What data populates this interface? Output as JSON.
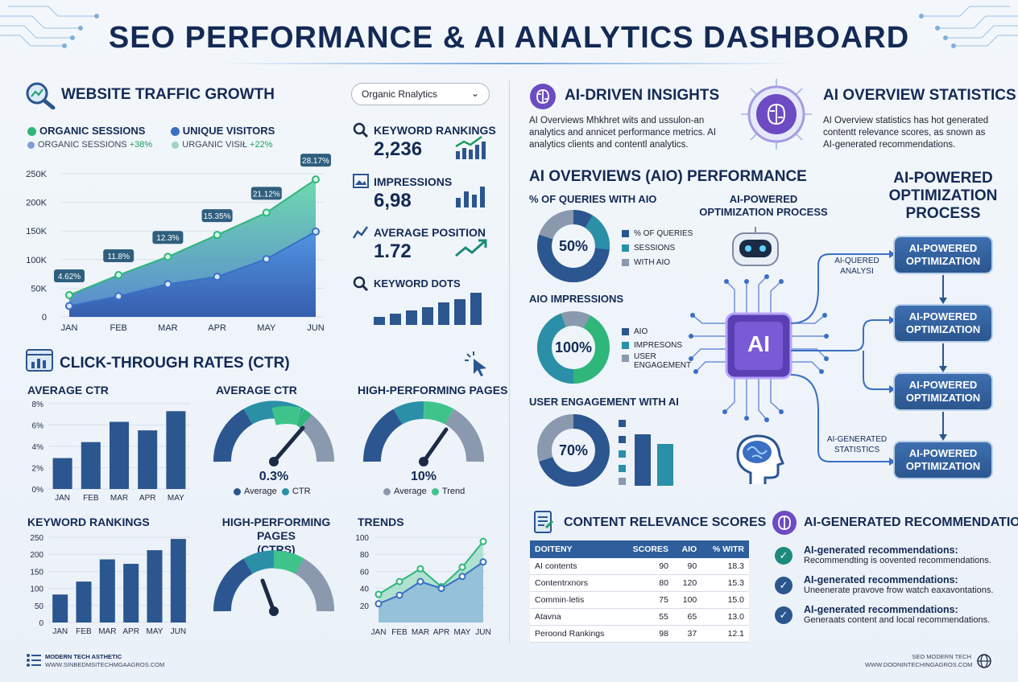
{
  "title": "SEO PERFORMANCE & AI ANALYTICS DASHBOARD",
  "traffic": {
    "title": "WEBSITE TRAFFIC GROWTH",
    "dropdown": "Organic Rnalytics",
    "legend1": "ORGANIC SESSIONS",
    "legend2": "UNIQUE VISITORS",
    "sub1_label": "ORGANIC SESSIONS",
    "sub1_value": "+38%",
    "sub2_label": "URGANIC VISIŁ",
    "sub2_value": "+22%"
  },
  "kpis": {
    "keyword_label": "KEYWORD RANKINGS",
    "keyword_value": "2,236",
    "impressions_label": "IMPRESSIONS",
    "impressions_value": "6,98",
    "position_label": "AVERAGE POSITION",
    "position_value": "1.72",
    "keyword_dots_label": "KEYWORD DOTS"
  },
  "ctr": {
    "title": "CLICK-THROUGH RATES (CTR)",
    "avg_ctr_label": "AVERAGE CTR",
    "gauge1_title": "AVERAGE CTR",
    "gauge1_value": "0.3%",
    "gauge1_leg1": "Average",
    "gauge1_leg2": "CTR",
    "gauge2_title": "HIGH-PERFORMING PAGES",
    "gauge2_value": "10%",
    "gauge2_leg1": "Average",
    "gauge2_leg2": "Trend",
    "kw_label": "KEYWORD RANKINGS",
    "gauge3_title": "HIGH-PERFORMING PAGES\n(CTRS)",
    "trends_label": "TRENDS"
  },
  "ai": {
    "insights_title": "AI-DRIVEN INSIGHTS",
    "insights_text": "AI Overviews Mhkhret wits and ussulon-an\nanalytics and annicet performance metrics. AI\nanalytics clients and contentl analytics.",
    "overview_title": "AI OVERVIEW STATISTICS",
    "overview_text": "AI Overview statistics has hot generated\ncontentt relevance scores, as snown as\nAI-generated recommendations.",
    "aio_title": "AI OVERVIEWS (AIO) PERFORMANCE",
    "queries_label": "% OF QUERIES WITH AIO",
    "donut1_value": "50%",
    "donut1_leg": [
      "% OF QUERIES",
      "SESSIONS",
      "WITH AIO"
    ],
    "impr_label": "AIO IMPRESSIONS",
    "donut2_value": "100%",
    "donut2_leg": [
      "AIO",
      "IMPRESONS",
      "USER\nENGAGEMENT"
    ],
    "engage_label": "USER ENGAGEMENT WITH AI",
    "donut3_value": "70%",
    "process_small": "AI-POWERED\nOPTIMIZATION PROCESS",
    "process_big": "AI-POWERED\nOPTIMIZATION\nPROCESS",
    "chip_label": "AI",
    "flow_label1": "AI-QUERED\nANALYSI",
    "flow_label2": "AI-GENERATED\nSTATISTICS",
    "flow_box": "AI-POWERED\nOPTIMIZATION"
  },
  "content": {
    "title": "CONTENT RELEVANCE SCORES",
    "headers": [
      "DOITENY",
      "SCORES",
      "AIO",
      "% WITR"
    ],
    "rows": [
      [
        "AI contents",
        "90",
        "90",
        "18.3"
      ],
      [
        "Contentrxnors",
        "80",
        "120",
        "15.3"
      ],
      [
        "Commin·letis",
        "75",
        "100",
        "15.0"
      ],
      [
        "Atavna",
        "55",
        "65",
        "13.0"
      ],
      [
        "Peroond Rankings",
        "98",
        "37",
        "12.1"
      ]
    ]
  },
  "recs": {
    "title": "AI-GENERATED RECOMMENDATIONS",
    "items": [
      {
        "head": "AI-generated recommendations:",
        "text": "Recommendting is oovented recommendations."
      },
      {
        "head": "AI-generated recommendations:",
        "text": "Uneenerate pravove frow watch eaxavontations."
      },
      {
        "head": "AI-generated recommendations:",
        "text": "Generaats content and local recommendations."
      }
    ]
  },
  "footer": {
    "left1": "MODERN TECH ASTHETIC",
    "left2": "WWW.SINBEDMSITECHMGAAGROS.COM",
    "right1": "SEO MODERN TECH",
    "right2": "WWW.DOONINTECHINGAGROS.COM"
  },
  "chart_data": [
    {
      "type": "area",
      "title": "WEBSITE TRAFFIC GROWTH",
      "categories": [
        "JAN",
        "FEB",
        "MAR",
        "APR",
        "MAY",
        "JUN"
      ],
      "ylim": [
        0,
        250000
      ],
      "yticks": [
        "0",
        "50K",
        "100K",
        "150K",
        "200K",
        "250K"
      ],
      "series": [
        {
          "name": "ORGANIC SESSIONS",
          "values": [
            38000,
            73000,
            105000,
            143000,
            182000,
            240000
          ],
          "color": "#2fb67a"
        },
        {
          "name": "UNIQUE VISITORS",
          "values": [
            19000,
            36000,
            57000,
            70000,
            101000,
            149000
          ],
          "color": "#3a6fc4"
        }
      ],
      "annotations": [
        "4.62%",
        "11.8%",
        "12.3%",
        "15.35%",
        "21.12%",
        "28.17%"
      ]
    },
    {
      "type": "bar",
      "title": "AVERAGE CTR",
      "categories": [
        "JAN",
        "FEB",
        "MAR",
        "APR",
        "MAY"
      ],
      "ylim": [
        0,
        8
      ],
      "yticks": [
        "0%",
        "2%",
        "4%",
        "6%",
        "8%"
      ],
      "values": [
        2.9,
        4.4,
        6.3,
        5.5,
        7.3
      ]
    },
    {
      "type": "bar",
      "title": "KEYWORD RANKINGS",
      "categories": [
        "JAN",
        "FEB",
        "MAR",
        "APR",
        "MAY",
        "JUN"
      ],
      "ylim": [
        0,
        250
      ],
      "yticks": [
        "0",
        "50",
        "100",
        "150",
        "200",
        "250"
      ],
      "values": [
        82,
        120,
        185,
        172,
        212,
        245
      ]
    },
    {
      "type": "line",
      "title": "TRENDS",
      "categories": [
        "JAN",
        "FEB",
        "MAR",
        "APR",
        "MAY",
        "JUN"
      ],
      "ylim": [
        0,
        100
      ],
      "yticks": [
        "20",
        "40",
        "60",
        "80",
        "100"
      ],
      "series": [
        {
          "values": [
            33,
            48,
            63,
            42,
            65,
            95
          ],
          "color": "#2fb67a"
        },
        {
          "values": [
            22,
            32,
            48,
            40,
            54,
            71
          ],
          "color": "#3a6fc4"
        }
      ]
    }
  ]
}
